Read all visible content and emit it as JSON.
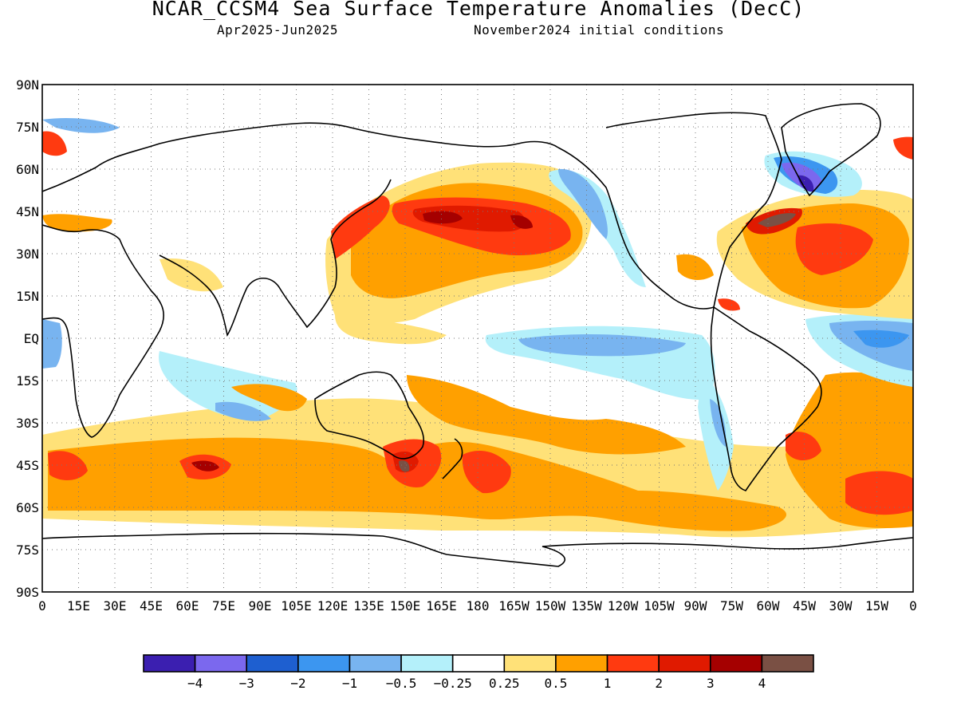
{
  "header": {
    "title": "NCAR_CCSM4 Sea Surface Temperature Anomalies (DecC)",
    "period": "Apr2025-Jun2025",
    "init": "November2024 initial conditions"
  },
  "map": {
    "lat_labels": [
      "90N",
      "75N",
      "60N",
      "45N",
      "30N",
      "15N",
      "EQ",
      "15S",
      "30S",
      "45S",
      "60S",
      "75S",
      "90S"
    ],
    "lon_labels": [
      "0",
      "15E",
      "30E",
      "45E",
      "60E",
      "75E",
      "90E",
      "105E",
      "120E",
      "135E",
      "150E",
      "165E",
      "180",
      "165W",
      "150W",
      "135W",
      "120W",
      "105W",
      "90W",
      "75W",
      "60W",
      "45W",
      "30W",
      "15W",
      "0"
    ]
  },
  "colorbar": {
    "colors": [
      "#3b1fb0",
      "#7b68ee",
      "#1e5fd0",
      "#3c96f0",
      "#78b4f0",
      "#b4f0fa",
      "#ffffff",
      "#ffe178",
      "#ffa000",
      "#ff3a10",
      "#e01a00",
      "#a50000",
      "#7a5044"
    ],
    "labels": [
      "−4",
      "−3",
      "−2",
      "−1",
      "−0.5",
      "−0.25",
      "0.25",
      "0.5",
      "1",
      "2",
      "3",
      "4"
    ]
  }
}
